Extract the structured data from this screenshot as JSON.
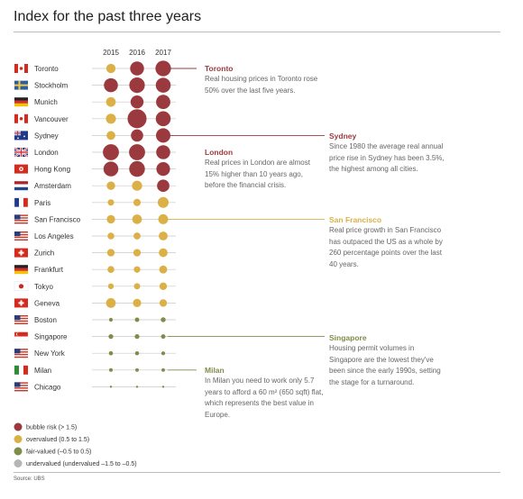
{
  "title": "Index for the past three years",
  "source": "Source: UBS",
  "colors": {
    "bubble": "#9b3a3e",
    "overvalued": "#dbb147",
    "fair": "#7f8d4a",
    "undervalued": "#b5b5b5",
    "line": "#c9c9c9"
  },
  "chart_data": {
    "type": "scatter",
    "title": "Index for the past three years",
    "years": [
      "2015",
      "2016",
      "2017"
    ],
    "categories": [
      "Toronto",
      "Stockholm",
      "Munich",
      "Vancouver",
      "Sydney",
      "London",
      "Hong Kong",
      "Amsterdam",
      "Paris",
      "San Francisco",
      "Los Angeles",
      "Zurich",
      "Frankfurt",
      "Tokyo",
      "Geneva",
      "Boston",
      "Singapore",
      "New York",
      "Milan",
      "Chicago"
    ],
    "flags": [
      "canada",
      "sweden",
      "germany",
      "canada",
      "australia",
      "uk",
      "hongkong",
      "netherlands",
      "france",
      "usa",
      "usa",
      "switzerland",
      "germany",
      "japan",
      "switzerland",
      "usa",
      "singapore",
      "usa",
      "italy",
      "usa"
    ],
    "series": [
      {
        "name": "2015",
        "values": [
          1.15,
          1.88,
          1.21,
          1.27,
          1.07,
          2.2,
          2.0,
          1.02,
          0.7,
          1.02,
          0.76,
          0.88,
          0.78,
          0.61,
          1.22,
          0.3,
          0.45,
          0.36,
          0.29,
          0.06
        ]
      },
      {
        "name": "2016",
        "values": [
          1.86,
          2.11,
          1.72,
          2.65,
          1.61,
          2.2,
          2.14,
          1.28,
          0.85,
          1.2,
          0.79,
          0.87,
          0.73,
          0.69,
          1.0,
          0.41,
          0.45,
          0.35,
          0.27,
          0.03
        ]
      },
      {
        "name": "2017",
        "values": [
          2.12,
          2.02,
          1.92,
          2.02,
          1.94,
          1.88,
          1.83,
          1.63,
          1.39,
          1.25,
          1.09,
          1.07,
          0.95,
          0.89,
          0.88,
          0.48,
          0.41,
          0.31,
          0.26,
          0.03
        ]
      }
    ],
    "legend": [
      {
        "label": "bubble risk  (> 1.5)",
        "color": "#9b3a3e"
      },
      {
        "label": "overvalued (0.5 to 1.5)",
        "color": "#dbb147"
      },
      {
        "label": "fair-valued (–0.5 to 0.5)",
        "color": "#7f8d4a"
      },
      {
        "label": "undervalued (undervalued –1.5 to –0.5)",
        "color": "#b5b5b5"
      }
    ],
    "legend_position": "bottom-left"
  },
  "callouts": [
    {
      "city": "Toronto",
      "title": "Toronto",
      "text": "Real housing prices in Toronto rose 50% over the last five years.",
      "color": "#9b3a3e"
    },
    {
      "city": "Sydney",
      "title": "Sydney",
      "text": "Since 1980 the average real annual price rise in Sydney has been 3.5%, the highest among all cities.",
      "color": "#9b3a3e"
    },
    {
      "city": "London",
      "title": "London",
      "text": "Real prices in London are almost 15% higher than 10 years ago, before the financial crisis.",
      "color": "#9b3a3e"
    },
    {
      "city": "San Francisco",
      "title": "San Francisco",
      "text": "Real price growth in San Francisco has outpaced the US as a whole by 260 percentage points over the last 40 years.",
      "color": "#dbb147"
    },
    {
      "city": "Singapore",
      "title": "Singapore",
      "text": "Housing permit volumes in Singapore are the lowest they've been since the early 1990s, setting the stage for a turnaround.",
      "color": "#7f8d4a"
    },
    {
      "city": "Milan",
      "title": "Milan",
      "text": "In Milan you need to work only 5.7 years to afford a 60 m² (650 sqft) flat, which represents the best value in Europe.",
      "color": "#7f8d4a"
    }
  ]
}
